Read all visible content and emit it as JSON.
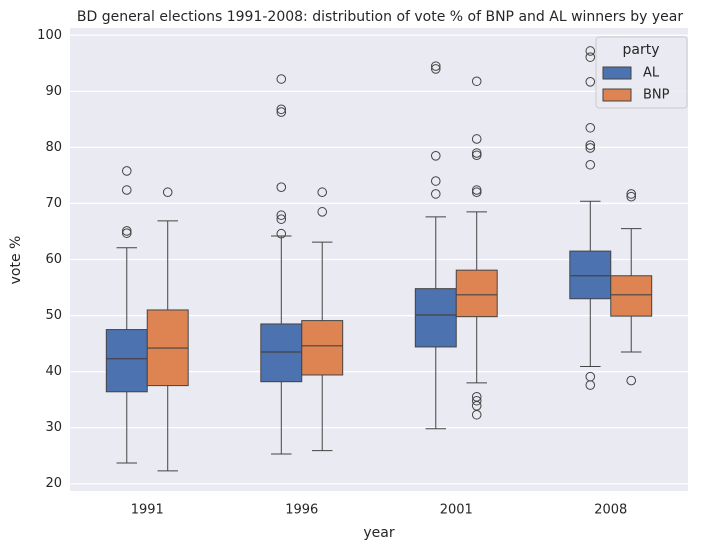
{
  "chart_data": {
    "type": "box",
    "title": "BD general elections 1991-2008: distribution of vote % of BNP and AL winners by year",
    "x_label": "year",
    "y_label": "vote %",
    "categories": [
      "1991",
      "1996",
      "2001",
      "2008"
    ],
    "ylim": [
      18.7,
      101.3
    ],
    "yticks": [
      20,
      30,
      40,
      50,
      60,
      70,
      80,
      90,
      100
    ],
    "grid": true,
    "legend_title": "party",
    "legend_loc": "upper right",
    "series": [
      {
        "name": "AL",
        "color": "#4c72b0",
        "values": [
          {
            "low": 23.7,
            "q1": 36.4,
            "median": 42.3,
            "q3": 47.5,
            "high": 62.1,
            "outliers": [
              75.8,
              72.4,
              65.1,
              64.7
            ]
          },
          {
            "low": 25.3,
            "q1": 38.2,
            "median": 43.5,
            "q3": 48.5,
            "high": 64.2,
            "outliers": [
              92.2,
              86.8,
              86.3,
              72.9,
              67.9,
              67.2,
              64.6
            ]
          },
          {
            "low": 29.8,
            "q1": 44.4,
            "median": 50.1,
            "q3": 54.8,
            "high": 67.6,
            "outliers": [
              94.5,
              94.0,
              78.5,
              74.0,
              71.7
            ]
          },
          {
            "low": 40.9,
            "q1": 53.0,
            "median": 57.1,
            "q3": 61.5,
            "high": 70.4,
            "outliers": [
              97.2,
              96.1,
              91.7,
              83.5,
              80.4,
              79.9,
              76.9,
              39.1,
              37.6
            ]
          }
        ]
      },
      {
        "name": "BNP",
        "color": "#dd8452",
        "values": [
          {
            "low": 22.3,
            "q1": 37.5,
            "median": 44.2,
            "q3": 51.0,
            "high": 66.9,
            "outliers": [
              72.0
            ]
          },
          {
            "low": 25.9,
            "q1": 39.4,
            "median": 44.6,
            "q3": 49.1,
            "high": 63.1,
            "outliers": [
              72.0,
              68.5
            ]
          },
          {
            "low": 38.0,
            "q1": 49.8,
            "median": 53.7,
            "q3": 58.1,
            "high": 68.5,
            "outliers": [
              91.8,
              81.5,
              79.0,
              78.6,
              72.4,
              72.0,
              35.5,
              34.8,
              33.9,
              32.3
            ]
          },
          {
            "low": 43.5,
            "q1": 49.9,
            "median": 53.7,
            "q3": 57.1,
            "high": 65.5,
            "outliers": [
              71.7,
              71.2,
              38.4
            ]
          }
        ]
      }
    ]
  }
}
